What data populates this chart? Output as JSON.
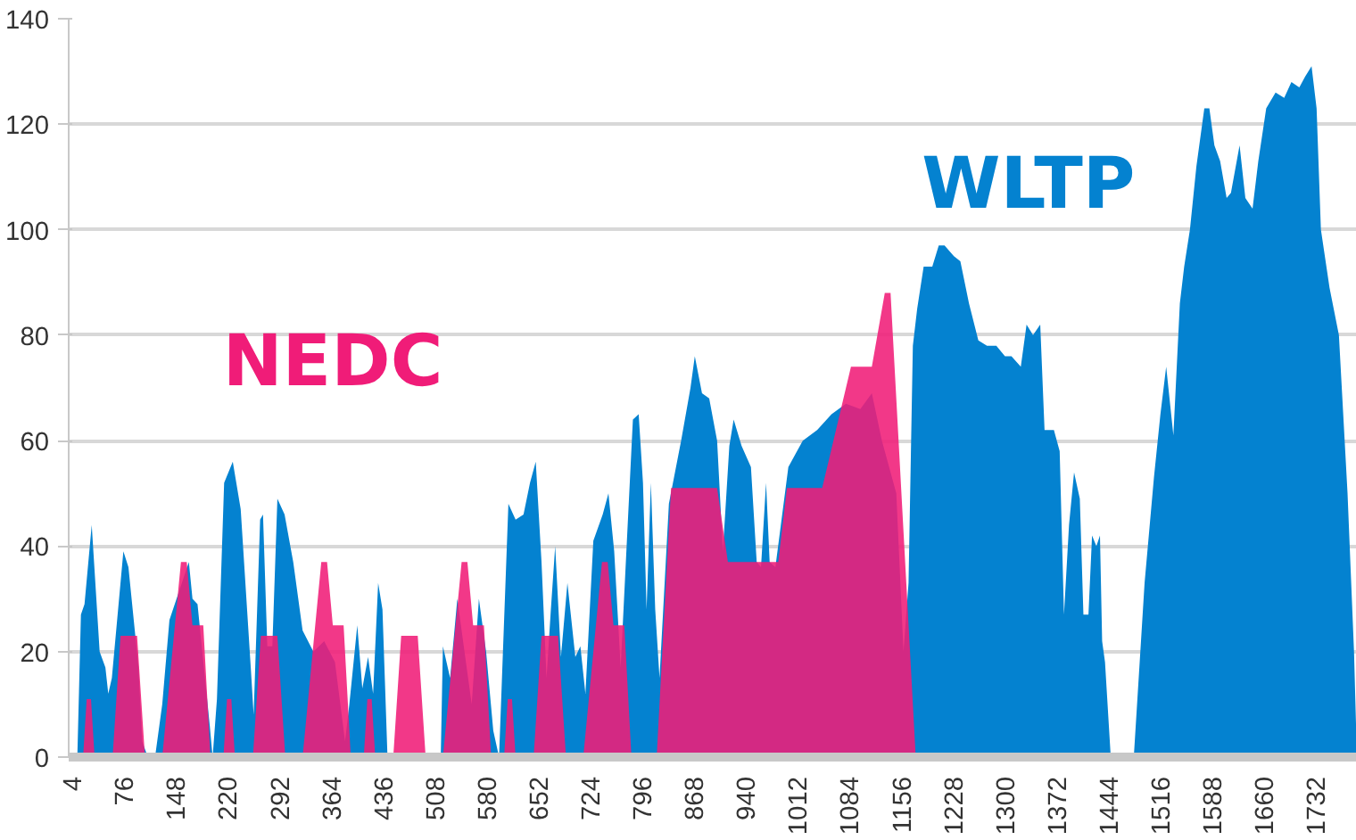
{
  "chart_data": {
    "type": "area",
    "xlim": [
      0,
      1790
    ],
    "ylim": [
      0,
      140
    ],
    "xticks": [
      4,
      76,
      148,
      220,
      292,
      364,
      436,
      508,
      580,
      652,
      724,
      796,
      868,
      940,
      1012,
      1084,
      1156,
      1228,
      1300,
      1372,
      1444,
      1516,
      1588,
      1660,
      1732
    ],
    "yticks": [
      0,
      20,
      40,
      60,
      80,
      100,
      120,
      140
    ],
    "grid": "y",
    "series": [
      {
        "name": "WLTP",
        "color": "#0482d0",
        "x": [
          0,
          12,
          17,
          22,
          32,
          43,
          51,
          55,
          60,
          76,
          83,
          97,
          102,
          110,
          120,
          130,
          140,
          167,
          172,
          179,
          196,
          200,
          206,
          216,
          228,
          239,
          253,
          257,
          266,
          270,
          276,
          283,
          290,
          300,
          312,
          325,
          340,
          355,
          370,
          384,
          390,
          401,
          408,
          416,
          423,
          430,
          436,
          443,
          517,
          520,
          530,
          540,
          550,
          560,
          570,
          580,
          590,
          598,
          611,
          621,
          632,
          641,
          649,
          657,
          664,
          670,
          676,
          684,
          693,
          704,
          711,
          718,
          729,
          742,
          750,
          758,
          767,
          776,
          784,
          792,
          798,
          803,
          809,
          815,
          821,
          834,
          851,
          864,
          870,
          880,
          890,
          901,
          909,
          918,
          924,
          935,
          948,
          956,
          962,
          969,
          974,
          982,
          1000,
          1020,
          1040,
          1060,
          1080,
          1100,
          1116,
          1130,
          1150,
          1160,
          1167,
          1173,
          1179,
          1188,
          1200,
          1209,
          1217,
          1230,
          1239,
          1251,
          1264,
          1276,
          1289,
          1301,
          1310,
          1323,
          1331,
          1340,
          1350,
          1356,
          1369,
          1377,
          1383,
          1390,
          1397,
          1405,
          1410,
          1417,
          1422,
          1428,
          1433,
          1436,
          1440,
          1448,
          1480,
          1495,
          1508,
          1517,
          1525,
          1535,
          1544,
          1550,
          1558,
          1567,
          1578,
          1585,
          1592,
          1600,
          1609,
          1615,
          1627,
          1635,
          1645,
          1653,
          1664,
          1677,
          1689,
          1699,
          1710,
          1718,
          1727,
          1734,
          1740,
          1752,
          1765,
          1777,
          1786,
          1790
        ],
        "values": [
          0,
          0,
          27,
          29,
          44,
          20,
          17,
          12,
          15,
          39,
          36,
          17,
          3,
          0,
          0,
          10,
          26,
          37,
          30,
          29,
          6,
          0,
          11,
          52,
          56,
          47,
          17,
          8,
          45,
          46,
          21,
          21,
          49,
          46,
          37,
          24,
          20,
          22,
          18,
          3,
          10,
          25,
          13,
          19,
          12,
          33,
          28,
          0,
          0,
          21,
          15,
          30,
          20,
          10,
          30,
          20,
          5,
          0,
          48,
          45,
          46,
          52,
          56,
          37,
          15,
          28,
          40,
          19,
          33,
          19,
          21,
          12,
          41,
          46,
          50,
          39,
          17,
          42,
          64,
          65,
          52,
          28,
          52,
          28,
          15,
          48,
          60,
          70,
          76,
          69,
          68,
          60,
          39,
          59,
          64,
          59,
          55,
          37,
          36,
          52,
          37,
          36,
          55,
          60,
          62,
          65,
          67,
          66,
          69,
          60,
          50,
          20,
          33,
          78,
          85,
          93,
          93,
          97,
          97,
          95,
          94,
          86,
          79,
          78,
          78,
          76,
          76,
          74,
          82,
          80,
          82,
          62,
          62,
          58,
          27,
          44,
          54,
          49,
          27,
          27,
          42,
          40,
          42,
          22,
          18,
          0,
          0,
          33,
          53,
          65,
          74,
          61,
          86,
          93,
          100,
          112,
          123,
          123,
          116,
          113,
          106,
          107,
          116,
          106,
          104,
          113,
          123,
          126,
          125,
          128,
          127,
          129,
          131,
          123,
          100,
          89,
          80,
          50,
          20,
          0
        ]
      },
      {
        "name": "NEDC",
        "color": "#f01c78",
        "x": [
          0,
          20,
          25,
          31,
          36,
          61,
          72,
          95,
          106,
          130,
          156,
          164,
          172,
          187,
          197,
          215,
          220,
          226,
          231,
          256,
          267,
          290,
          301,
          325,
          351,
          359,
          367,
          382,
          392,
          410,
          415,
          421,
          426,
          451,
          462,
          485,
          496,
          520,
          546,
          554,
          562,
          577,
          587,
          605,
          610,
          616,
          621,
          646,
          657,
          680,
          691,
          715,
          741,
          749,
          757,
          772,
          782,
          817,
          837,
          901,
          916,
          986,
          998,
          1047,
          1087,
          1116,
          1134,
          1142,
          1177
        ],
        "values": [
          0,
          0,
          11,
          11,
          0,
          0,
          23,
          23,
          0,
          0,
          37,
          37,
          25,
          25,
          0,
          0,
          11,
          11,
          0,
          0,
          23,
          23,
          0,
          0,
          37,
          37,
          25,
          25,
          0,
          0,
          11,
          11,
          0,
          0,
          23,
          23,
          0,
          0,
          37,
          37,
          25,
          25,
          0,
          0,
          11,
          11,
          0,
          0,
          23,
          23,
          0,
          0,
          37,
          37,
          25,
          25,
          0,
          0,
          51,
          51,
          37,
          37,
          51,
          51,
          74,
          74,
          88,
          88,
          0
        ]
      }
    ]
  }
}
